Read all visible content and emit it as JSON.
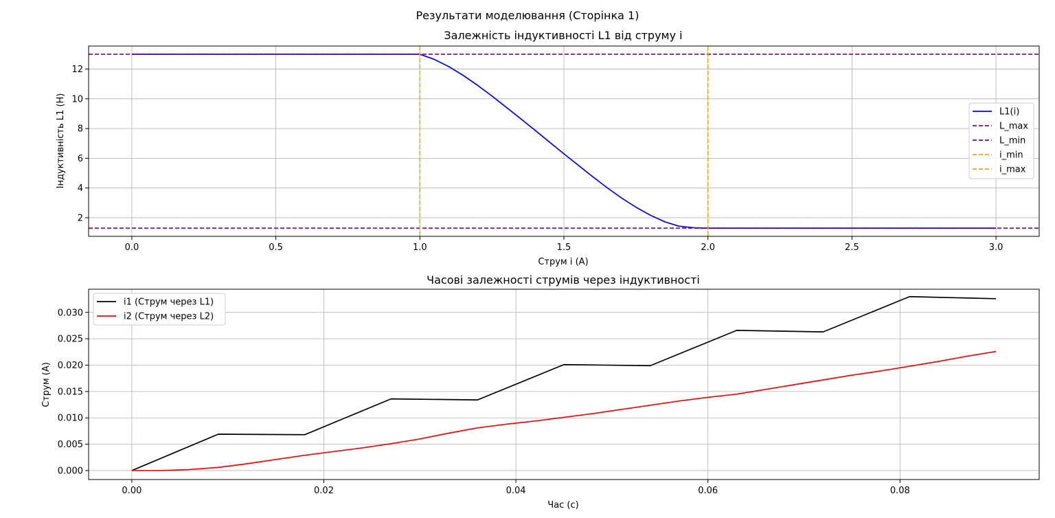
{
  "figure": {
    "suptitle": "Результати моделювання (Сторінка 1)"
  },
  "colors": {
    "l1_curve": "#0000ff",
    "l_limits": "#800080",
    "i_limits": "#ffa500",
    "i1": "#000000",
    "i2": "#ff0000",
    "grid": "#b0b0b0"
  },
  "chart_data": [
    {
      "type": "line",
      "title": "Залежність індуктивності L1 від струму i",
      "xlabel": "Струм i (A)",
      "ylabel": "Індуктивність L1 (H)",
      "xlim": [
        -0.15,
        3.15
      ],
      "ylim": [
        0.75,
        13.55
      ],
      "xticks": [
        0.0,
        0.5,
        1.0,
        1.5,
        2.0,
        2.5,
        3.0
      ],
      "xtick_labels": [
        "0.0",
        "0.5",
        "1.0",
        "1.5",
        "2.0",
        "2.5",
        "3.0"
      ],
      "yticks": [
        2,
        4,
        6,
        8,
        10,
        12
      ],
      "ytick_labels": [
        "2",
        "4",
        "6",
        "8",
        "10",
        "12"
      ],
      "grid": true,
      "legend_position": "center-right",
      "series": [
        {
          "name": "L1(i)",
          "color": "#0000ff",
          "style": "solid",
          "x": [
            0.0,
            0.5,
            1.0,
            1.05,
            1.1,
            1.15,
            1.2,
            1.25,
            1.3,
            1.35,
            1.4,
            1.45,
            1.5,
            1.55,
            1.6,
            1.65,
            1.7,
            1.75,
            1.8,
            1.85,
            1.9,
            1.95,
            2.0,
            2.5,
            3.0
          ],
          "y": [
            13.0,
            13.0,
            13.0,
            12.65,
            12.17,
            11.58,
            10.91,
            10.19,
            9.43,
            8.66,
            7.88,
            7.09,
            6.3,
            5.53,
            4.76,
            4.02,
            3.33,
            2.71,
            2.17,
            1.73,
            1.43,
            1.33,
            1.3,
            1.3,
            1.3
          ]
        },
        {
          "name": "L_max",
          "color": "#800080",
          "style": "dashed",
          "orientation": "horizontal",
          "value": 13.0
        },
        {
          "name": "L_min",
          "color": "#800080",
          "style": "dashed",
          "orientation": "horizontal",
          "value": 1.3
        },
        {
          "name": "i_min",
          "color": "#ffa500",
          "style": "dashed",
          "orientation": "vertical",
          "value": 1.0
        },
        {
          "name": "i_max",
          "color": "#ffa500",
          "style": "dashed",
          "orientation": "vertical",
          "value": 2.0
        }
      ]
    },
    {
      "type": "line",
      "title": "Часові залежності струмів через індуктивності",
      "xlabel": "Час (с)",
      "ylabel": "Струм (A)",
      "xlim": [
        -0.0045,
        0.0945
      ],
      "ylim": [
        -0.0017,
        0.0344
      ],
      "xticks": [
        0.0,
        0.02,
        0.04,
        0.06,
        0.08
      ],
      "xtick_labels": [
        "0.00",
        "0.02",
        "0.04",
        "0.06",
        "0.08"
      ],
      "yticks": [
        0.0,
        0.005,
        0.01,
        0.015,
        0.02,
        0.025,
        0.03
      ],
      "ytick_labels": [
        "0.000",
        "0.005",
        "0.010",
        "0.015",
        "0.020",
        "0.025",
        "0.030"
      ],
      "grid": true,
      "legend_position": "upper-left",
      "series": [
        {
          "name": "i1 (Струм через L1)",
          "color": "#000000",
          "style": "solid",
          "x": [
            0.0,
            0.009,
            0.018,
            0.027,
            0.036,
            0.045,
            0.054,
            0.063,
            0.072,
            0.081,
            0.09
          ],
          "y": [
            0.0,
            0.0069,
            0.0068,
            0.0136,
            0.0134,
            0.0201,
            0.0199,
            0.0266,
            0.0263,
            0.033,
            0.0326
          ]
        },
        {
          "name": "i2 (Струм через L2)",
          "color": "#ff0000",
          "style": "solid",
          "x": [
            0.0,
            0.003,
            0.006,
            0.009,
            0.012,
            0.015,
            0.018,
            0.021,
            0.024,
            0.027,
            0.03,
            0.033,
            0.036,
            0.039,
            0.042,
            0.045,
            0.048,
            0.051,
            0.054,
            0.057,
            0.06,
            0.063,
            0.066,
            0.069,
            0.072,
            0.075,
            0.078,
            0.081,
            0.084,
            0.087,
            0.09
          ],
          "y": [
            0.0,
            0.0,
            0.0002,
            0.0006,
            0.0013,
            0.0021,
            0.0029,
            0.0036,
            0.0043,
            0.0051,
            0.006,
            0.0071,
            0.0081,
            0.0088,
            0.0094,
            0.0101,
            0.0108,
            0.0116,
            0.0124,
            0.0132,
            0.0139,
            0.0145,
            0.0154,
            0.0163,
            0.0172,
            0.0181,
            0.0189,
            0.0198,
            0.0207,
            0.0217,
            0.0226
          ]
        }
      ]
    }
  ]
}
